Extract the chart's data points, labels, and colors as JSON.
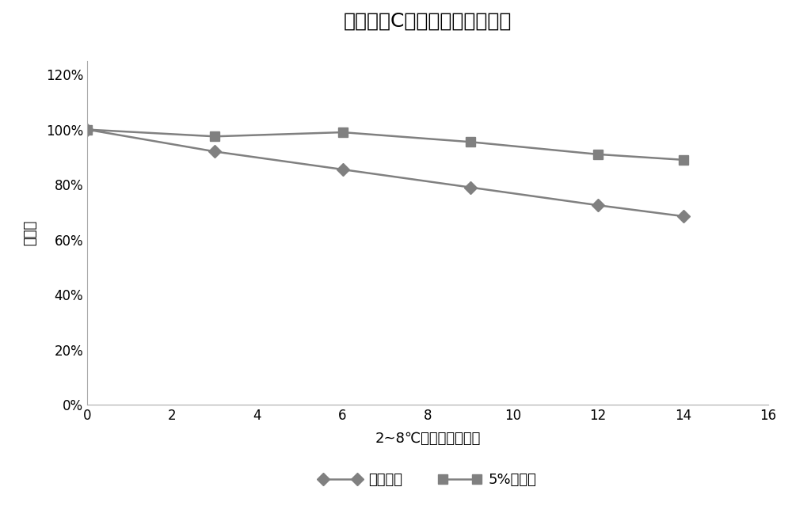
{
  "title_pre": "海藻糖对",
  "title_bold": "C",
  "title_post": "肽酶试剂稳定性影响",
  "xlabel": "2~8℃存放时间（月）",
  "ylabel": "酶活性",
  "x_values": [
    0,
    3,
    6,
    9,
    12,
    14
  ],
  "series1_label": "无海藻糖",
  "series1_values": [
    1.0,
    0.92,
    0.855,
    0.79,
    0.725,
    0.685
  ],
  "series2_label": "5%海藻糖",
  "series2_values": [
    1.0,
    0.975,
    0.99,
    0.955,
    0.91,
    0.89
  ],
  "line_color": "#808080",
  "marker1": "D",
  "marker2": "s",
  "xlim": [
    0,
    16
  ],
  "ylim": [
    0,
    1.25
  ],
  "yticks": [
    0.0,
    0.2,
    0.4,
    0.6,
    0.8,
    1.0,
    1.2
  ],
  "xticks": [
    0,
    2,
    4,
    6,
    8,
    10,
    12,
    14,
    16
  ],
  "background_color": "#ffffff"
}
